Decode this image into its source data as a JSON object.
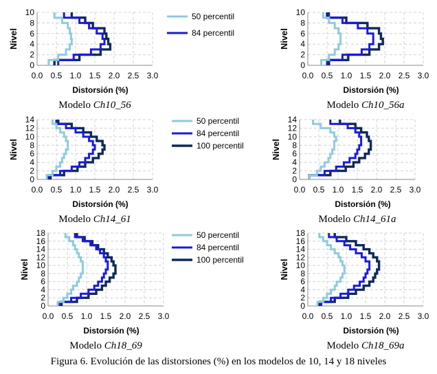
{
  "caption": "Figura 6. Evolución de las distorsiones (%) en los modelos de 10, 14 y 18 niveles",
  "colors": {
    "p50": "#8ecbdc",
    "p84": "#1a1adb",
    "p100": "#0d2a57",
    "grid": "#d0d0d0"
  },
  "chart_data": [
    {
      "type": "line",
      "caption_prefix": "Modelo ",
      "caption_model": "Ch10_56",
      "xlabel": "Distorsión (%)",
      "ylabel": "Nivel",
      "xlim": [
        0,
        3
      ],
      "ylim": [
        0,
        10
      ],
      "xticks": [
        "0.0",
        "0.5",
        "1.0",
        "1.5",
        "2.0",
        "2.5",
        "3.0"
      ],
      "yticks": [
        "0",
        "2",
        "4",
        "6",
        "8",
        "10"
      ],
      "legend": [
        "50 percentil",
        "84 percentil"
      ],
      "series": [
        {
          "name": "50 percentil",
          "key": "p50",
          "values": [
            0.3,
            0.55,
            0.75,
            0.85,
            0.9,
            0.88,
            0.85,
            0.8,
            0.65,
            0.45
          ]
        },
        {
          "name": "84 percentil",
          "key": "p84",
          "values": [
            0.55,
            0.95,
            1.4,
            1.65,
            1.75,
            1.7,
            1.55,
            1.35,
            1.1,
            0.7
          ]
        },
        {
          "name": "100 percentil",
          "key": "p100",
          "values": [
            0.45,
            1.1,
            1.65,
            1.9,
            1.85,
            1.8,
            1.75,
            1.45,
            1.25,
            0.9
          ]
        }
      ]
    },
    {
      "type": "line",
      "caption_prefix": "Modelo ",
      "caption_model": "Ch10_56a",
      "xlabel": "Distorsión (%)",
      "ylabel": "Nivel",
      "xlim": [
        0,
        3
      ],
      "ylim": [
        0,
        10
      ],
      "xticks": [
        "0.0",
        "0.5",
        "1.0",
        "1.5",
        "2.0",
        "2.5",
        "3.0"
      ],
      "yticks": [
        "0",
        "2",
        "4",
        "6",
        "8",
        "10"
      ],
      "legend": [],
      "series": [
        {
          "name": "50 percentil",
          "key": "p50",
          "values": [
            0.35,
            0.55,
            0.7,
            0.8,
            0.85,
            0.85,
            0.8,
            0.7,
            0.55,
            0.4
          ]
        },
        {
          "name": "84 percentil",
          "key": "p84",
          "values": [
            0.5,
            0.9,
            1.4,
            1.6,
            1.7,
            1.7,
            1.55,
            1.3,
            0.9,
            0.55
          ]
        },
        {
          "name": "100 percentil",
          "key": "p100",
          "values": [
            0.55,
            1.05,
            1.6,
            1.85,
            1.95,
            1.9,
            1.85,
            1.55,
            1.0,
            0.5
          ]
        }
      ]
    },
    {
      "type": "line",
      "caption_prefix": "Modelo ",
      "caption_model": "Ch14_61",
      "xlabel": "Distorsión (%)",
      "ylabel": "Nivel",
      "xlim": [
        0,
        3
      ],
      "ylim": [
        0,
        14
      ],
      "xticks": [
        "0.0",
        "0.5",
        "1.0",
        "1.5",
        "2.0",
        "2.5",
        "3.0"
      ],
      "yticks": [
        "0",
        "2",
        "4",
        "6",
        "8",
        "10",
        "12",
        "14"
      ],
      "legend": [
        "50 percentil",
        "84 percentil",
        "100 percentil"
      ],
      "series": [
        {
          "name": "50 percentil",
          "key": "p50",
          "values": [
            0.25,
            0.4,
            0.5,
            0.6,
            0.65,
            0.7,
            0.75,
            0.8,
            0.8,
            0.75,
            0.7,
            0.6,
            0.5,
            0.4
          ]
        },
        {
          "name": "84 percentil",
          "key": "p84",
          "values": [
            0.3,
            0.6,
            0.9,
            1.1,
            1.25,
            1.35,
            1.45,
            1.5,
            1.45,
            1.35,
            1.2,
            1.0,
            0.75,
            0.5
          ]
        },
        {
          "name": "100 percentil",
          "key": "p100",
          "values": [
            0.35,
            0.7,
            1.05,
            1.25,
            1.45,
            1.6,
            1.7,
            1.75,
            1.7,
            1.55,
            1.4,
            1.2,
            0.9,
            0.55
          ]
        }
      ]
    },
    {
      "type": "line",
      "caption_prefix": "Modelo ",
      "caption_model": "Ch14_61a",
      "xlabel": "Distorsión (%)",
      "ylabel": "Nivel",
      "xlim": [
        0,
        3
      ],
      "ylim": [
        0,
        14
      ],
      "xticks": [
        "0.0",
        "0.5",
        "1.0",
        "1.5",
        "2.0",
        "2.5",
        "3.0"
      ],
      "yticks": [
        "0",
        "2",
        "4",
        "6",
        "8",
        "10",
        "12",
        "14"
      ],
      "legend": [],
      "series": [
        {
          "name": "50 percentil",
          "key": "p50",
          "values": [
            0.25,
            0.45,
            0.55,
            0.65,
            0.75,
            0.8,
            0.85,
            0.9,
            0.9,
            0.95,
            0.9,
            0.8,
            0.55,
            0.35
          ]
        },
        {
          "name": "84 percentil",
          "key": "p84",
          "values": [
            0.25,
            0.65,
            0.95,
            1.15,
            1.3,
            1.45,
            1.5,
            1.55,
            1.6,
            1.6,
            1.55,
            1.45,
            1.25,
            0.8
          ]
        },
        {
          "name": "100 percentil",
          "key": "p100",
          "values": [
            0.25,
            0.8,
            1.2,
            1.4,
            1.55,
            1.7,
            1.8,
            1.85,
            1.85,
            1.8,
            1.75,
            1.6,
            1.45,
            1.05
          ]
        }
      ]
    },
    {
      "type": "line",
      "caption_prefix": "Modelo ",
      "caption_model": "Ch18_69",
      "xlabel": "Distorsión (%)",
      "ylabel": "Nivel",
      "xlim": [
        0,
        3
      ],
      "ylim": [
        0,
        18
      ],
      "xticks": [
        "0.0",
        "0.5",
        "1.0",
        "1.5",
        "2.0",
        "2.5",
        "3.0"
      ],
      "yticks": [
        "0",
        "2",
        "4",
        "6",
        "8",
        "10",
        "12",
        "14",
        "16",
        "18"
      ],
      "legend": [
        "50 percentil",
        "84 percentil",
        "100 percentil"
      ],
      "series": [
        {
          "name": "50 percentil",
          "key": "p50",
          "values": [
            0.25,
            0.4,
            0.5,
            0.6,
            0.65,
            0.75,
            0.8,
            0.85,
            0.9,
            0.9,
            0.9,
            0.85,
            0.8,
            0.75,
            0.7,
            0.65,
            0.55,
            0.45
          ]
        },
        {
          "name": "84 percentil",
          "key": "p84",
          "values": [
            0.3,
            0.6,
            0.85,
            1.05,
            1.2,
            1.3,
            1.4,
            1.45,
            1.5,
            1.55,
            1.55,
            1.5,
            1.45,
            1.35,
            1.25,
            1.1,
            0.9,
            0.7
          ]
        },
        {
          "name": "100 percentil",
          "key": "p100",
          "values": [
            0.35,
            0.75,
            1.05,
            1.25,
            1.4,
            1.5,
            1.6,
            1.7,
            1.75,
            1.75,
            1.7,
            1.65,
            1.55,
            1.45,
            1.3,
            1.15,
            0.95,
            0.75
          ]
        }
      ]
    },
    {
      "type": "line",
      "caption_prefix": "Modelo ",
      "caption_model": "Ch18_69a",
      "xlabel": "Distorsión (%)",
      "ylabel": "Nivel",
      "xlim": [
        0,
        3
      ],
      "ylim": [
        0,
        18
      ],
      "xticks": [
        "0.0",
        "0.5",
        "1.0",
        "1.5",
        "2.0",
        "2.5",
        "3.0"
      ],
      "yticks": [
        "0",
        "2",
        "4",
        "6",
        "8",
        "10",
        "12",
        "14",
        "16",
        "18"
      ],
      "legend": [],
      "series": [
        {
          "name": "50 percentil",
          "key": "p50",
          "values": [
            0.25,
            0.4,
            0.5,
            0.6,
            0.7,
            0.75,
            0.85,
            0.9,
            0.95,
            0.95,
            0.9,
            0.85,
            0.8,
            0.7,
            0.6,
            0.5,
            0.4,
            0.3
          ]
        },
        {
          "name": "84 percentil",
          "key": "p84",
          "values": [
            0.35,
            0.6,
            0.85,
            1.05,
            1.2,
            1.35,
            1.45,
            1.5,
            1.55,
            1.6,
            1.6,
            1.5,
            1.4,
            1.25,
            1.1,
            0.95,
            0.75,
            0.55
          ]
        },
        {
          "name": "100 percentil",
          "key": "p100",
          "values": [
            0.3,
            0.7,
            1.05,
            1.25,
            1.45,
            1.6,
            1.7,
            1.75,
            1.8,
            1.85,
            1.85,
            1.8,
            1.7,
            1.6,
            1.45,
            1.25,
            1.0,
            0.7
          ]
        }
      ]
    }
  ]
}
